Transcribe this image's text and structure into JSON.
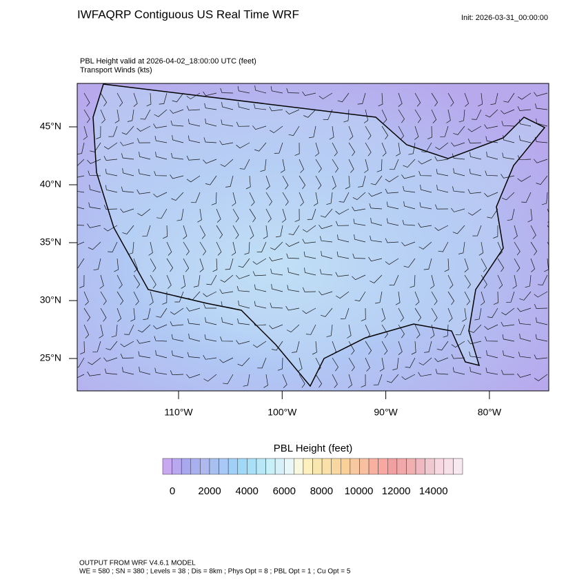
{
  "header": {
    "title": "IWFAQRP Contiguous US Real Time WRF",
    "init": "Init: 2026-03-31_00:00:00"
  },
  "plot": {
    "field_label": "PBL Height valid at 2026-04-02_18:00:00 UTC   (feet)",
    "wind_label": "Transport Winds   (kts)",
    "lat_labels": [
      "45°N",
      "40°N",
      "35°N",
      "30°N",
      "25°N"
    ],
    "lon_labels": [
      "110°W",
      "100°W",
      "90°W",
      "80°W"
    ]
  },
  "colorbar": {
    "title": "PBL Height  (feet)",
    "labels": [
      "0",
      "2000",
      "4000",
      "6000",
      "8000",
      "10000",
      "12000",
      "14000"
    ],
    "colors": [
      "#c8a8f0",
      "#b8a8f0",
      "#a8a8f0",
      "#a8b0f0",
      "#b0b8f0",
      "#a8c0f0",
      "#a8c8f8",
      "#a0d0f8",
      "#a0d8f8",
      "#a8e0f8",
      "#b8e8f8",
      "#c8f0f8",
      "#d8f0f8",
      "#e8f8f8",
      "#f8f8e0",
      "#fff0c0",
      "#f8e8b0",
      "#f8e0a8",
      "#f8d8a0",
      "#f8d098",
      "#f8c8a0",
      "#f8c0a0",
      "#f8b0a0",
      "#f8a8a0",
      "#f0a0a0",
      "#f0a8a8",
      "#f0b0b0",
      "#f0b8c0",
      "#f0c8d0",
      "#f8d8e0",
      "#f8e0e8",
      "#f8e8f0"
    ]
  },
  "footer": {
    "line1": "OUTPUT FROM WRF V4.6.1 MODEL",
    "line2": "WE = 580 ; SN = 380 ; Levels = 38 ; Dis = 8km ; Phys Opt = 8 ; PBL Opt = 1 ; Cu Opt = 5"
  }
}
